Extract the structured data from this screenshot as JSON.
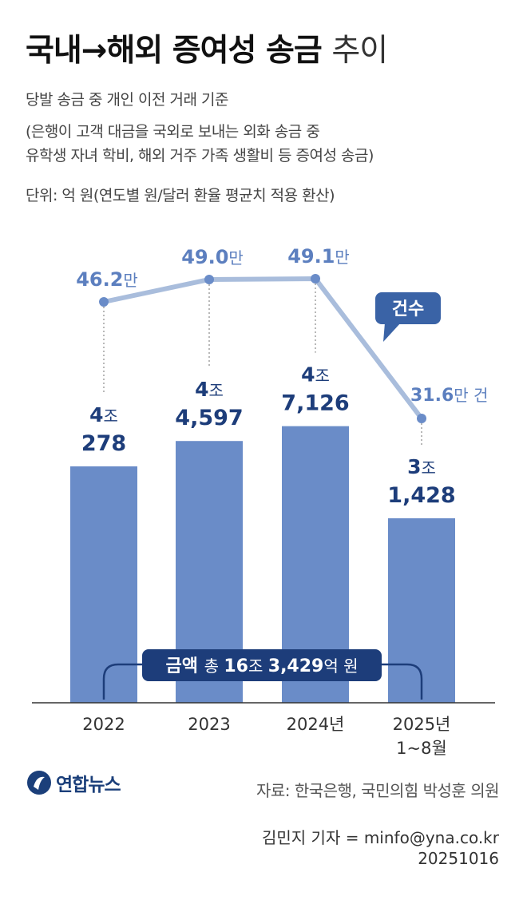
{
  "header": {
    "title_main": "국내→해외 증여성 송금",
    "title_suffix": "추이",
    "subtitle_1": "당발 송금 중 개인 이전 거래 기준",
    "subtitle_2": "(은행이 고객 대금을 국외로 보내는 외화 송금 중",
    "subtitle_3": " 유학생 자녀 학비, 해외 거주 가족 생활비 등 증여성 송금)",
    "unit_note": "단위: 억 원(연도별 원/달러 환율 평균치 적용 환산)"
  },
  "chart_data": {
    "type": "bar",
    "categories": [
      "2022",
      "2023",
      "2024년",
      "2025년\n1~8월"
    ],
    "category_lines": [
      [
        "2022"
      ],
      [
        "2023"
      ],
      [
        "2024년"
      ],
      [
        "2025년",
        "1~8월"
      ]
    ],
    "ylabel": "",
    "series": [
      {
        "type": "bar",
        "values": [
          40278,
          44597,
          47126,
          31428
        ],
        "labels": [
          {
            "top": "4조",
            "bottom": "278"
          },
          {
            "top": "4조",
            "bottom": "4,597"
          },
          {
            "top": "4조",
            "bottom": "7,126"
          },
          {
            "top": "3조",
            "bottom": "1,428"
          }
        ]
      },
      {
        "name": "건수",
        "type": "line",
        "values": [
          46.2,
          49.0,
          49.1,
          31.6
        ],
        "labels": [
          "46.2",
          "49.0",
          "49.1",
          "31.6"
        ],
        "unit": "만",
        "last_unit": "만 건"
      }
    ],
    "total": {
      "label_bold": "금액",
      "label_rest": "총",
      "value_a": "16",
      "unit_a": "조",
      "value_b": "3,429",
      "unit_b": "억 원"
    },
    "colors": {
      "bar": "#6a8cc8",
      "line": "#a9bddc",
      "point": "#6a8cc8",
      "bar_label": "#1d3d7a",
      "line_label": "#5c7fbf",
      "bubble": "#3a63a6",
      "total_box": "#1d3d7a"
    }
  },
  "footer": {
    "logo_text": "연합뉴스",
    "source": "자료: 한국은행, 국민의힘 박성훈 의원",
    "credit": "김민지 기자 = minfo@yna.co.kr",
    "date": "20251016"
  }
}
